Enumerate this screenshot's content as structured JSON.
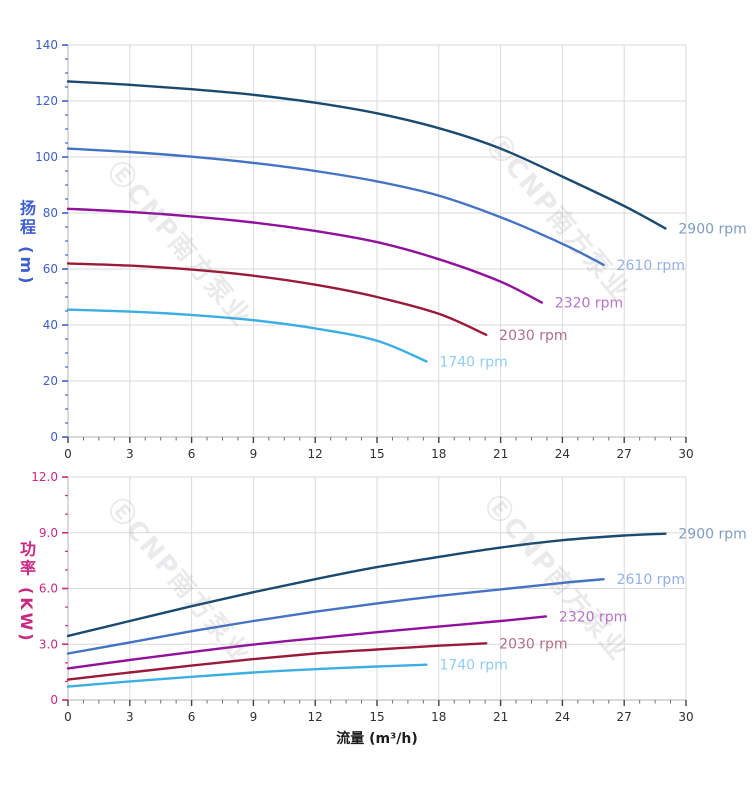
{
  "watermark": {
    "text": "ⒺCNP南方泵业"
  },
  "chart_data": [
    {
      "type": "line",
      "title": "",
      "xlabel": "",
      "ylabel": "扬程 (m)",
      "xlim": [
        0,
        30
      ],
      "ylim": [
        0,
        140
      ],
      "grid": true,
      "legend_position": "curve-end-labels",
      "x_ticks": {
        "values": [
          0,
          3,
          6,
          9,
          12,
          15,
          18,
          21,
          24,
          27,
          30
        ],
        "labels": [
          "0",
          "3",
          "6",
          "9",
          "12",
          "15",
          "18",
          "21",
          "24",
          "27",
          "30"
        ],
        "minor_step": 0.75
      },
      "y_ticks": {
        "values": [
          0,
          20,
          40,
          60,
          80,
          100,
          120,
          140
        ],
        "labels": [
          "0",
          "20",
          "40",
          "60",
          "80",
          "100",
          "120",
          "140"
        ],
        "minor_step": 5
      },
      "colors": {
        "y_axis": "#3e5ed0",
        "x_axis": "#303030",
        "grid": "#dadada",
        "axis_line": "#c2c2c2"
      },
      "series": [
        {
          "name": "2900 rpm",
          "color": "#1b4a70",
          "label_color": "#7e9cc2",
          "points": [
            [
              0,
              127
            ],
            [
              3,
              125.8
            ],
            [
              6,
              124.2
            ],
            [
              9,
              122.2
            ],
            [
              12,
              119.4
            ],
            [
              15,
              115.6
            ],
            [
              18,
              110.3
            ],
            [
              21,
              103
            ],
            [
              24,
              93
            ],
            [
              27,
              82.5
            ],
            [
              29,
              74.5
            ]
          ]
        },
        {
          "name": "2610 rpm",
          "color": "#4472c4",
          "label_color": "#94b2e4",
          "points": [
            [
              0,
              103
            ],
            [
              3,
              101.8
            ],
            [
              6,
              100.1
            ],
            [
              9,
              97.9
            ],
            [
              12,
              95
            ],
            [
              15,
              91.3
            ],
            [
              18,
              86.2
            ],
            [
              21,
              78.5
            ],
            [
              24,
              69
            ],
            [
              26,
              61.5
            ]
          ]
        },
        {
          "name": "2320 rpm",
          "color": "#91119c",
          "label_color": "#b873cb",
          "points": [
            [
              0,
              81.5
            ],
            [
              3,
              80.4
            ],
            [
              6,
              78.8
            ],
            [
              9,
              76.6
            ],
            [
              12,
              73.6
            ],
            [
              15,
              69.6
            ],
            [
              18,
              63.5
            ],
            [
              21,
              55.5
            ],
            [
              23,
              48
            ]
          ]
        },
        {
          "name": "2030 rpm",
          "color": "#9a1a38",
          "label_color": "#b16e87",
          "points": [
            [
              0,
              62
            ],
            [
              3,
              61.2
            ],
            [
              6,
              59.8
            ],
            [
              9,
              57.6
            ],
            [
              12,
              54.4
            ],
            [
              15,
              50
            ],
            [
              18,
              44
            ],
            [
              20.3,
              36.5
            ]
          ]
        },
        {
          "name": "1740 rpm",
          "color": "#3bafe3",
          "label_color": "#90cdef",
          "points": [
            [
              0,
              45.5
            ],
            [
              3,
              44.8
            ],
            [
              6,
              43.6
            ],
            [
              9,
              41.7
            ],
            [
              12,
              38.8
            ],
            [
              15,
              34.4
            ],
            [
              17.4,
              27
            ]
          ]
        }
      ]
    },
    {
      "type": "line",
      "title": "",
      "xlabel": "流量 (m³/h)",
      "ylabel": "功率 (KW)",
      "xlim": [
        0,
        30
      ],
      "ylim": [
        0,
        12
      ],
      "grid": true,
      "legend_position": "curve-end-labels",
      "x_ticks": {
        "values": [
          0,
          3,
          6,
          9,
          12,
          15,
          18,
          21,
          24,
          27,
          30
        ],
        "labels": [
          "0",
          "3",
          "6",
          "9",
          "12",
          "15",
          "18",
          "21",
          "24",
          "27",
          "30"
        ],
        "minor_step": 0.75
      },
      "y_ticks": {
        "values": [
          0,
          3,
          6,
          9,
          12
        ],
        "labels": [
          "0",
          "3.0",
          "6.0",
          "9.0",
          "12.0"
        ],
        "minor_step": 1
      },
      "colors": {
        "y_axis": "#c82982",
        "x_axis": "#303030",
        "grid": "#dadada",
        "axis_line": "#c2c2c2"
      },
      "series": [
        {
          "name": "2900 rpm",
          "color": "#1b4a70",
          "label_color": "#7e9cc2",
          "points": [
            [
              0,
              3.45
            ],
            [
              3,
              4.25
            ],
            [
              6,
              5.05
            ],
            [
              9,
              5.8
            ],
            [
              12,
              6.5
            ],
            [
              15,
              7.15
            ],
            [
              18,
              7.7
            ],
            [
              21,
              8.2
            ],
            [
              24,
              8.6
            ],
            [
              27,
              8.85
            ],
            [
              29,
              8.95
            ]
          ]
        },
        {
          "name": "2610 rpm",
          "color": "#4472c4",
          "label_color": "#94b2e4",
          "points": [
            [
              0,
              2.5
            ],
            [
              3,
              3.1
            ],
            [
              6,
              3.7
            ],
            [
              9,
              4.25
            ],
            [
              12,
              4.75
            ],
            [
              15,
              5.2
            ],
            [
              18,
              5.6
            ],
            [
              21,
              5.95
            ],
            [
              24,
              6.3
            ],
            [
              26,
              6.5
            ]
          ]
        },
        {
          "name": "2320 rpm",
          "color": "#91119c",
          "label_color": "#b873cb",
          "points": [
            [
              0,
              1.7
            ],
            [
              3,
              2.15
            ],
            [
              6,
              2.58
            ],
            [
              9,
              2.98
            ],
            [
              12,
              3.32
            ],
            [
              15,
              3.65
            ],
            [
              18,
              3.95
            ],
            [
              21,
              4.25
            ],
            [
              23.2,
              4.5
            ]
          ]
        },
        {
          "name": "2030 rpm",
          "color": "#9a1a38",
          "label_color": "#b16e87",
          "points": [
            [
              0,
              1.1
            ],
            [
              3,
              1.48
            ],
            [
              6,
              1.85
            ],
            [
              9,
              2.2
            ],
            [
              12,
              2.5
            ],
            [
              15,
              2.72
            ],
            [
              18,
              2.92
            ],
            [
              20.3,
              3.05
            ]
          ]
        },
        {
          "name": "1740 rpm",
          "color": "#3bafe3",
          "label_color": "#90cdef",
          "points": [
            [
              0,
              0.72
            ],
            [
              3,
              1.0
            ],
            [
              6,
              1.25
            ],
            [
              9,
              1.48
            ],
            [
              12,
              1.66
            ],
            [
              15,
              1.8
            ],
            [
              17.4,
              1.9
            ]
          ]
        }
      ]
    }
  ]
}
